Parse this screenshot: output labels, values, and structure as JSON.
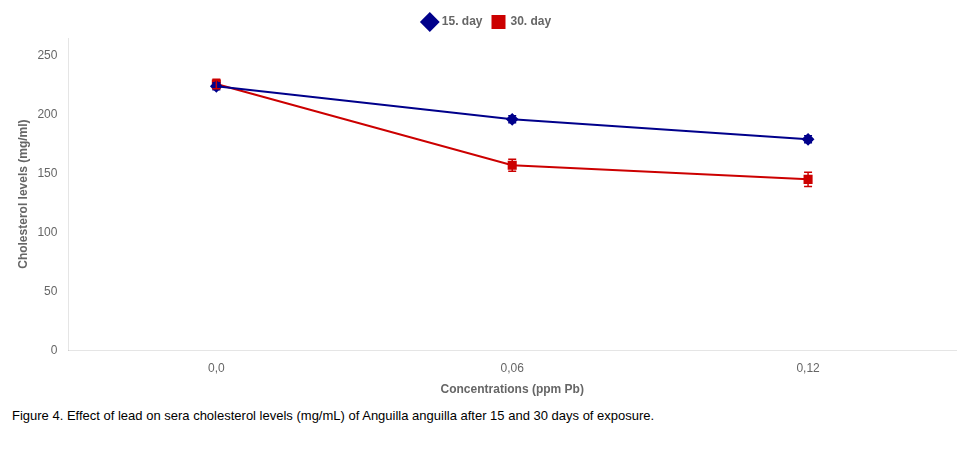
{
  "chart_data": {
    "type": "line",
    "x_label": "Concentrations (ppm Pb)",
    "y_label": "Cholesterol levels (mg/ml)",
    "caption": "Figure 4. Effect of lead on sera cholesterol levels (mg/mL) of Anguilla anguilla after 15 and 30 days of exposure.",
    "categories": [
      "0,0",
      "0,06",
      "0,12"
    ],
    "series": [
      {
        "name": "15. day",
        "color": "#00008B",
        "marker": "diamond",
        "values": [
          224,
          196,
          179
        ],
        "errors": [
          3,
          3,
          3
        ]
      },
      {
        "name": "30. day",
        "color": "#CC0000",
        "marker": "square",
        "values": [
          226,
          157,
          145
        ],
        "errors": [
          4,
          5,
          6
        ]
      }
    ],
    "ylim": [
      0,
      265
    ],
    "yticks": [
      0,
      50,
      100,
      150,
      200,
      250
    ],
    "grid": false,
    "legend": "top"
  }
}
